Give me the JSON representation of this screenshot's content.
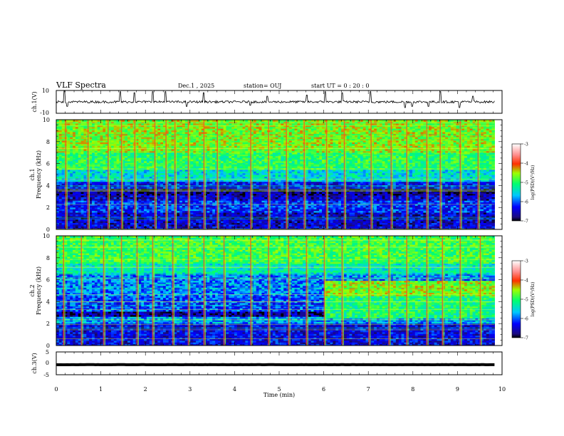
{
  "header": {
    "title": "VLF Spectra",
    "date": "Dec.1  , 2025",
    "station": "station= OUJ",
    "start_ut": "start  UT  =   0  : 20 : 0"
  },
  "chart_data": [
    {
      "id": "ch1-waveform",
      "type": "line",
      "ylabel": "ch.1(V)",
      "ylim": [
        -10,
        10
      ],
      "yticks": [
        "10",
        "-10"
      ],
      "baseline": 0,
      "noise_amplitude": 2,
      "spikes": [
        {
          "t": 0.18,
          "v": 9.5
        },
        {
          "t": 0.25,
          "v": -4
        },
        {
          "t": 1.44,
          "v": 9
        },
        {
          "t": 1.75,
          "v": 8
        },
        {
          "t": 2.17,
          "v": 9
        },
        {
          "t": 2.45,
          "v": 9
        },
        {
          "t": 2.93,
          "v": -4
        },
        {
          "t": 3.3,
          "v": 8
        },
        {
          "t": 4.35,
          "v": -3
        },
        {
          "t": 4.73,
          "v": 5
        },
        {
          "t": 5.62,
          "v": 6
        },
        {
          "t": 6.04,
          "v": 9
        },
        {
          "t": 6.42,
          "v": 8
        },
        {
          "t": 7.05,
          "v": 9
        },
        {
          "t": 7.82,
          "v": -5
        },
        {
          "t": 7.98,
          "v": -4
        },
        {
          "t": 8.34,
          "v": -4
        },
        {
          "t": 8.62,
          "v": 9
        },
        {
          "t": 9.05,
          "v": -5
        },
        {
          "t": 9.35,
          "v": 5
        }
      ]
    },
    {
      "id": "ch1-spectrogram",
      "type": "heatmap",
      "ylabel": "ch.1\nFrequency  (kHz)",
      "ylim": [
        0,
        10
      ],
      "yticks": [
        "0",
        "2",
        "4",
        "6",
        "8",
        "10"
      ],
      "color_range": [
        -7,
        -3
      ],
      "colorbar_ticks": [
        "-3",
        "-4",
        "-5",
        "-6",
        "-7"
      ],
      "colorbar_label": "log(PSD)(V²/Hz)",
      "bands": [
        {
          "f_from": 10.0,
          "f_to": 7.0,
          "level": -4.6
        },
        {
          "f_from": 7.0,
          "f_to": 5.5,
          "level": -5.0
        },
        {
          "f_from": 5.5,
          "f_to": 4.3,
          "level": -5.5
        },
        {
          "f_from": 4.3,
          "f_to": 3.7,
          "level": -6.3
        },
        {
          "f_from": 3.7,
          "f_to": 3.2,
          "level": -6.7
        },
        {
          "f_from": 3.2,
          "f_to": 2.6,
          "level": -6.5
        },
        {
          "f_from": 2.6,
          "f_to": 1.6,
          "level": -6.2
        },
        {
          "f_from": 1.6,
          "f_to": 0.0,
          "level": -6.5
        }
      ],
      "spike_times": [
        0.2,
        0.7,
        1.15,
        1.45,
        1.75,
        2.2,
        2.45,
        2.65,
        2.95,
        3.3,
        3.6,
        4.35,
        4.75,
        5.15,
        5.55,
        6.05,
        6.45,
        7.05,
        7.5,
        7.85,
        8.3,
        8.6,
        9.05,
        9.45
      ]
    },
    {
      "id": "ch2-spectrogram",
      "type": "heatmap",
      "ylabel": "ch.2\nFrequency  (kHz)",
      "ylim": [
        0,
        10
      ],
      "yticks": [
        "0",
        "2",
        "4",
        "6",
        "8",
        "10"
      ],
      "color_range": [
        -7,
        -3
      ],
      "colorbar_ticks": [
        "-3",
        "-4",
        "-5",
        "-6",
        "-7"
      ],
      "colorbar_label": "log(PSD)(V²/Hz)",
      "bands": [
        {
          "f_from": 10.0,
          "f_to": 7.5,
          "level": -4.9
        },
        {
          "f_from": 7.5,
          "f_to": 6.5,
          "level": -5.4
        },
        {
          "f_from": 6.5,
          "f_to": 4.5,
          "level": -5.9
        },
        {
          "f_from": 4.5,
          "f_to": 3.2,
          "level": -6.1
        },
        {
          "f_from": 3.2,
          "f_to": 2.6,
          "level": -6.7
        },
        {
          "f_from": 2.6,
          "f_to": 2.0,
          "level": -5.8
        },
        {
          "f_from": 2.0,
          "f_to": 0.0,
          "level": -6.4
        }
      ],
      "late_enhancement": {
        "t_from": 6.0,
        "f_from": 2.5,
        "f_to": 6.0,
        "level": -4.8
      },
      "spike_times": [
        0.15,
        0.55,
        1.05,
        1.45,
        1.8,
        2.15,
        2.6,
        2.95,
        3.3,
        3.75,
        4.35,
        4.75,
        5.2,
        5.6,
        6.0,
        6.4,
        7.0,
        7.45,
        7.85,
        8.3,
        8.65,
        9.05,
        9.5
      ]
    },
    {
      "id": "ch3-waveform",
      "type": "line",
      "ylabel": "ch.3(V)",
      "ylim": [
        -5,
        5
      ],
      "yticks": [
        "5",
        "0",
        "-5"
      ],
      "baseline": 0,
      "noise_amplitude": 0.4
    }
  ],
  "time_axis": {
    "xlabel": "Time  (min)",
    "xlim": [
      0,
      10
    ],
    "data_end": 9.83,
    "ticks": [
      "0",
      "1",
      "2",
      "3",
      "4",
      "5",
      "6",
      "7",
      "8",
      "9",
      "10"
    ]
  }
}
